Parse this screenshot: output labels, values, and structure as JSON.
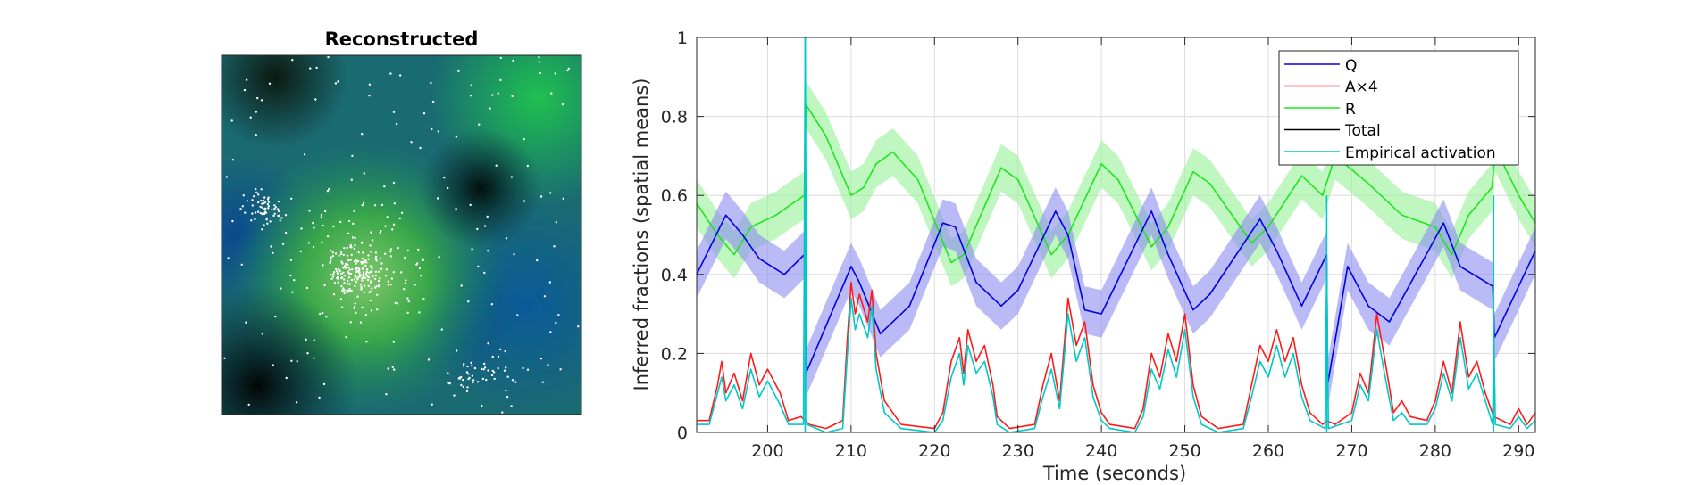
{
  "left_panel": {
    "title": "Reconstructed"
  },
  "chart_data": {
    "type": "line",
    "title": "",
    "xlabel": "Time (seconds)",
    "ylabel": "Inferred fractions (spatial means)",
    "xlim": [
      191.5,
      292
    ],
    "ylim": [
      0,
      1
    ],
    "xticks": [
      200,
      210,
      220,
      230,
      240,
      250,
      260,
      270,
      280,
      290
    ],
    "yticks": [
      0,
      0.2,
      0.4,
      0.6,
      0.8,
      1
    ],
    "ytick_labels": [
      "0",
      "0.2",
      "0.4",
      "0.6",
      "0.8",
      "1"
    ],
    "grid": true,
    "legend_position": "top-right",
    "reset_times": [
      204.5,
      267,
      287
    ],
    "colors": {
      "Q": "#0000e6",
      "A": "#ff1a1a",
      "R": "#1ee61e",
      "Total": "#000000",
      "Empirical": "#00c8c8",
      "Q_band": "#8c8cf0",
      "R_band": "#96f096"
    },
    "series": [
      {
        "name": "Q",
        "band": 0.06,
        "points": [
          [
            191.5,
            0.4
          ],
          [
            195,
            0.55
          ],
          [
            197,
            0.5
          ],
          [
            199,
            0.44
          ],
          [
            202,
            0.4
          ],
          [
            204.4,
            0.45
          ],
          [
            204.6,
            0.15
          ],
          [
            210,
            0.42
          ],
          [
            211,
            0.38
          ],
          [
            213.5,
            0.25
          ],
          [
            217,
            0.32
          ],
          [
            221,
            0.53
          ],
          [
            222.5,
            0.52
          ],
          [
            225,
            0.38
          ],
          [
            228,
            0.32
          ],
          [
            230,
            0.36
          ],
          [
            234.5,
            0.56
          ],
          [
            236,
            0.5
          ],
          [
            238,
            0.31
          ],
          [
            240,
            0.3
          ],
          [
            246,
            0.56
          ],
          [
            248,
            0.45
          ],
          [
            251,
            0.31
          ],
          [
            253,
            0.35
          ],
          [
            259,
            0.54
          ],
          [
            261,
            0.46
          ],
          [
            264,
            0.32
          ],
          [
            267,
            0.45
          ],
          [
            267.1,
            0.12
          ],
          [
            269.5,
            0.42
          ],
          [
            272,
            0.32
          ],
          [
            274.5,
            0.28
          ],
          [
            281,
            0.53
          ],
          [
            283,
            0.42
          ],
          [
            286.9,
            0.37
          ],
          [
            287.1,
            0.24
          ],
          [
            292,
            0.46
          ]
        ]
      },
      {
        "name": "A×4",
        "points": [
          [
            191.5,
            0.03
          ],
          [
            193,
            0.03
          ],
          [
            194,
            0.12
          ],
          [
            194.5,
            0.18
          ],
          [
            195,
            0.1
          ],
          [
            196,
            0.15
          ],
          [
            197,
            0.08
          ],
          [
            198,
            0.2
          ],
          [
            199,
            0.12
          ],
          [
            200,
            0.16
          ],
          [
            201.5,
            0.1
          ],
          [
            202.5,
            0.03
          ],
          [
            204,
            0.04
          ],
          [
            205,
            0.02
          ],
          [
            207,
            0.01
          ],
          [
            208,
            0.02
          ],
          [
            209,
            0.03
          ],
          [
            209.5,
            0.22
          ],
          [
            210,
            0.38
          ],
          [
            210.5,
            0.3
          ],
          [
            211,
            0.35
          ],
          [
            212,
            0.28
          ],
          [
            212.5,
            0.36
          ],
          [
            213,
            0.2
          ],
          [
            214,
            0.08
          ],
          [
            216,
            0.02
          ],
          [
            220,
            0.01
          ],
          [
            221,
            0.05
          ],
          [
            222,
            0.18
          ],
          [
            223,
            0.24
          ],
          [
            223.5,
            0.15
          ],
          [
            224,
            0.26
          ],
          [
            225,
            0.18
          ],
          [
            226,
            0.22
          ],
          [
            227,
            0.12
          ],
          [
            227.5,
            0.04
          ],
          [
            229,
            0.01
          ],
          [
            232,
            0.02
          ],
          [
            233,
            0.12
          ],
          [
            234,
            0.2
          ],
          [
            235,
            0.08
          ],
          [
            236,
            0.34
          ],
          [
            237,
            0.22
          ],
          [
            238,
            0.28
          ],
          [
            239,
            0.12
          ],
          [
            240,
            0.05
          ],
          [
            241,
            0.02
          ],
          [
            244,
            0.01
          ],
          [
            245,
            0.06
          ],
          [
            246,
            0.2
          ],
          [
            247,
            0.14
          ],
          [
            248,
            0.25
          ],
          [
            249,
            0.18
          ],
          [
            250,
            0.3
          ],
          [
            251,
            0.12
          ],
          [
            252,
            0.04
          ],
          [
            254,
            0.01
          ],
          [
            257,
            0.02
          ],
          [
            258,
            0.12
          ],
          [
            259,
            0.22
          ],
          [
            260,
            0.18
          ],
          [
            261,
            0.26
          ],
          [
            262,
            0.18
          ],
          [
            263,
            0.24
          ],
          [
            264,
            0.12
          ],
          [
            265,
            0.05
          ],
          [
            266.5,
            0.02
          ],
          [
            267,
            0.03
          ],
          [
            268,
            0.02
          ],
          [
            270,
            0.05
          ],
          [
            271,
            0.15
          ],
          [
            272,
            0.1
          ],
          [
            273,
            0.3
          ],
          [
            274,
            0.18
          ],
          [
            275,
            0.05
          ],
          [
            276,
            0.08
          ],
          [
            277,
            0.04
          ],
          [
            279,
            0.03
          ],
          [
            280,
            0.08
          ],
          [
            281,
            0.18
          ],
          [
            282,
            0.1
          ],
          [
            283,
            0.28
          ],
          [
            284,
            0.14
          ],
          [
            285,
            0.18
          ],
          [
            286,
            0.1
          ],
          [
            287,
            0.04
          ],
          [
            289,
            0.02
          ],
          [
            290,
            0.06
          ],
          [
            291,
            0.02
          ],
          [
            292,
            0.05
          ]
        ]
      },
      {
        "name": "R",
        "band": 0.06,
        "points": [
          [
            191.5,
            0.58
          ],
          [
            194,
            0.5
          ],
          [
            196,
            0.45
          ],
          [
            198,
            0.52
          ],
          [
            201,
            0.55
          ],
          [
            203,
            0.58
          ],
          [
            204.4,
            0.6
          ],
          [
            204.6,
            0.83
          ],
          [
            207,
            0.75
          ],
          [
            210,
            0.6
          ],
          [
            211.5,
            0.62
          ],
          [
            213,
            0.68
          ],
          [
            215,
            0.71
          ],
          [
            218,
            0.64
          ],
          [
            222,
            0.43
          ],
          [
            223.5,
            0.45
          ],
          [
            228,
            0.67
          ],
          [
            230,
            0.64
          ],
          [
            234,
            0.45
          ],
          [
            236,
            0.5
          ],
          [
            240,
            0.68
          ],
          [
            242,
            0.64
          ],
          [
            246,
            0.47
          ],
          [
            248,
            0.52
          ],
          [
            251,
            0.66
          ],
          [
            253,
            0.63
          ],
          [
            258,
            0.48
          ],
          [
            260,
            0.52
          ],
          [
            264,
            0.65
          ],
          [
            266.5,
            0.6
          ],
          [
            267.1,
            0.64
          ],
          [
            268,
            0.7
          ],
          [
            272,
            0.63
          ],
          [
            276,
            0.55
          ],
          [
            280,
            0.52
          ],
          [
            282,
            0.45
          ],
          [
            284,
            0.55
          ],
          [
            286.8,
            0.62
          ],
          [
            287.2,
            0.72
          ],
          [
            290,
            0.6
          ],
          [
            292,
            0.53
          ]
        ]
      },
      {
        "name": "Total",
        "points": []
      },
      {
        "name": "Empirical activation",
        "points": [
          [
            191.5,
            0.02
          ],
          [
            193,
            0.02
          ],
          [
            194,
            0.1
          ],
          [
            194.5,
            0.14
          ],
          [
            195,
            0.08
          ],
          [
            196,
            0.12
          ],
          [
            197,
            0.06
          ],
          [
            198,
            0.16
          ],
          [
            199,
            0.09
          ],
          [
            200,
            0.13
          ],
          [
            201.5,
            0.07
          ],
          [
            202.5,
            0.02
          ],
          [
            204.3,
            0.02
          ],
          [
            204.5,
            1.0
          ],
          [
            204.7,
            0.02
          ],
          [
            207,
            0.0
          ],
          [
            209,
            0.01
          ],
          [
            209.5,
            0.18
          ],
          [
            210,
            0.34
          ],
          [
            210.5,
            0.26
          ],
          [
            211,
            0.3
          ],
          [
            212,
            0.24
          ],
          [
            212.5,
            0.32
          ],
          [
            213,
            0.16
          ],
          [
            214,
            0.05
          ],
          [
            216,
            0.01
          ],
          [
            220,
            0.0
          ],
          [
            221,
            0.03
          ],
          [
            222,
            0.14
          ],
          [
            223,
            0.2
          ],
          [
            223.5,
            0.12
          ],
          [
            224,
            0.22
          ],
          [
            225,
            0.15
          ],
          [
            226,
            0.18
          ],
          [
            227,
            0.09
          ],
          [
            227.5,
            0.02
          ],
          [
            229,
            0.0
          ],
          [
            232,
            0.01
          ],
          [
            233,
            0.09
          ],
          [
            234,
            0.16
          ],
          [
            235,
            0.06
          ],
          [
            236,
            0.3
          ],
          [
            237,
            0.18
          ],
          [
            238,
            0.24
          ],
          [
            239,
            0.09
          ],
          [
            240,
            0.03
          ],
          [
            241,
            0.01
          ],
          [
            244,
            0.0
          ],
          [
            245,
            0.04
          ],
          [
            246,
            0.16
          ],
          [
            247,
            0.11
          ],
          [
            248,
            0.21
          ],
          [
            249,
            0.14
          ],
          [
            250,
            0.26
          ],
          [
            251,
            0.09
          ],
          [
            252,
            0.02
          ],
          [
            254,
            0.0
          ],
          [
            257,
            0.01
          ],
          [
            258,
            0.09
          ],
          [
            259,
            0.18
          ],
          [
            260,
            0.14
          ],
          [
            261,
            0.22
          ],
          [
            262,
            0.14
          ],
          [
            263,
            0.2
          ],
          [
            264,
            0.09
          ],
          [
            265,
            0.03
          ],
          [
            266.8,
            0.01
          ],
          [
            267,
            0.42
          ],
          [
            267.2,
            0.01
          ],
          [
            270,
            0.03
          ],
          [
            271,
            0.12
          ],
          [
            272,
            0.08
          ],
          [
            273,
            0.26
          ],
          [
            274,
            0.14
          ],
          [
            275,
            0.03
          ],
          [
            276,
            0.05
          ],
          [
            277,
            0.02
          ],
          [
            279,
            0.02
          ],
          [
            280,
            0.06
          ],
          [
            281,
            0.15
          ],
          [
            282,
            0.08
          ],
          [
            283,
            0.24
          ],
          [
            284,
            0.11
          ],
          [
            285,
            0.15
          ],
          [
            286,
            0.08
          ],
          [
            286.9,
            0.02
          ],
          [
            287,
            0.28
          ],
          [
            287.2,
            0.02
          ],
          [
            289,
            0.01
          ],
          [
            290,
            0.04
          ],
          [
            291,
            0.01
          ],
          [
            292,
            0.03
          ]
        ]
      }
    ]
  }
}
